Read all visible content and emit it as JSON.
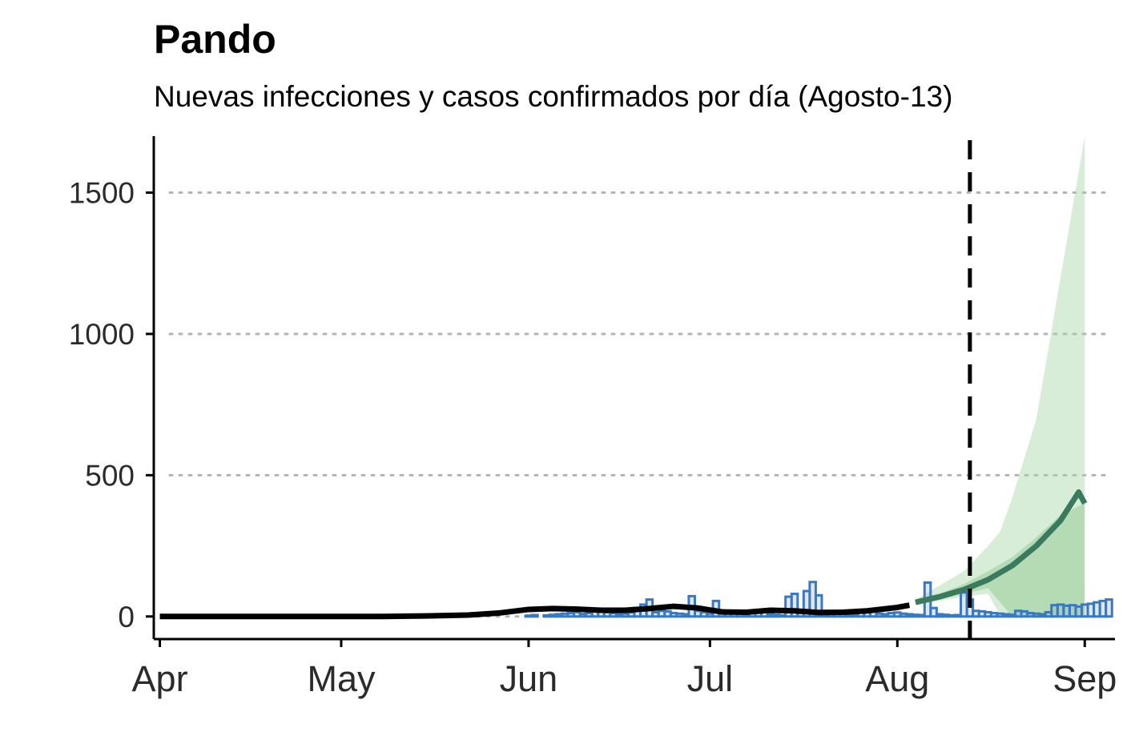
{
  "chart_data": {
    "type": "line",
    "title": "Pando",
    "subtitle": "Nuevas infecciones y casos confirmados por día (Agosto-13)",
    "xlabel": "",
    "ylabel": "",
    "x_range": [
      "2020-03-31",
      "2020-09-06"
    ],
    "ylim": [
      -80,
      1700
    ],
    "y_ticks": [
      0,
      500,
      1000,
      1500
    ],
    "x_ticks": [
      {
        "label": "Apr",
        "date": "2020-04-01"
      },
      {
        "label": "May",
        "date": "2020-05-01"
      },
      {
        "label": "Jun",
        "date": "2020-06-01"
      },
      {
        "label": "Jul",
        "date": "2020-07-01"
      },
      {
        "label": "Aug",
        "date": "2020-08-01"
      },
      {
        "label": "Sep",
        "date": "2020-09-01"
      }
    ],
    "grid": "horizontal dotted",
    "vertical_line": {
      "date": "2020-08-13",
      "style": "dashed"
    },
    "confirmed_cases": {
      "start_date": "2020-05-25",
      "values": [
        0,
        0,
        0,
        0,
        0,
        0,
        0,
        3,
        5,
        0,
        4,
        6,
        8,
        10,
        12,
        15,
        9,
        12,
        20,
        25,
        15,
        12,
        8,
        10,
        14,
        30,
        42,
        60,
        15,
        20,
        18,
        12,
        10,
        8,
        72,
        20,
        15,
        10,
        55,
        22,
        18,
        12,
        10,
        8,
        15,
        20,
        18,
        8,
        6,
        4,
        70,
        80,
        20,
        90,
        122,
        75,
        20,
        18,
        12,
        10,
        8,
        6,
        15,
        20,
        18,
        10,
        8,
        12,
        14,
        10,
        8,
        6,
        5,
        120,
        30,
        8,
        6,
        4,
        5,
        85,
        60,
        20,
        18,
        15,
        12,
        10,
        8,
        6,
        20,
        18,
        12,
        10,
        8,
        15,
        40,
        42,
        38,
        40,
        35,
        42,
        45,
        50,
        55,
        60
      ]
    },
    "series": [
      {
        "name": "",
        "color": "#000000",
        "x": [
          "2020-04-01",
          "2020-04-15",
          "2020-05-01",
          "2020-05-08",
          "2020-05-15",
          "2020-05-22",
          "2020-05-27",
          "2020-06-01",
          "2020-06-05",
          "2020-06-09",
          "2020-06-13",
          "2020-06-17",
          "2020-06-21",
          "2020-06-25",
          "2020-06-29",
          "2020-07-03",
          "2020-07-07",
          "2020-07-11",
          "2020-07-15",
          "2020-07-19",
          "2020-07-23",
          "2020-07-27",
          "2020-08-01",
          "2020-08-03"
        ],
        "values": [
          0,
          0,
          0,
          0,
          2,
          5,
          12,
          25,
          28,
          26,
          22,
          22,
          28,
          36,
          30,
          16,
          15,
          22,
          20,
          14,
          15,
          20,
          32,
          40
        ]
      },
      {
        "name": "",
        "color": "#3a7a5e",
        "x": [
          "2020-08-04",
          "2020-08-08",
          "2020-08-12",
          "2020-08-16",
          "2020-08-20",
          "2020-08-24",
          "2020-08-28",
          "2020-08-31",
          "2020-09-01"
        ],
        "values": [
          50,
          70,
          95,
          130,
          180,
          250,
          340,
          440,
          400
        ]
      }
    ],
    "bands": [
      {
        "color": "#a8d8a8",
        "x": [
          "2020-08-04",
          "2020-08-08",
          "2020-08-12",
          "2020-08-16",
          "2020-08-18",
          "2020-08-20",
          "2020-08-24",
          "2020-08-28",
          "2020-09-01"
        ],
        "lower": [
          40,
          55,
          70,
          80,
          5,
          0,
          0,
          0,
          0
        ],
        "upper": [
          60,
          110,
          160,
          250,
          300,
          420,
          700,
          1200,
          1700
        ]
      },
      {
        "color": "#8cc68c",
        "x": [
          "2020-08-04",
          "2020-08-08",
          "2020-08-12",
          "2020-08-16",
          "2020-08-20",
          "2020-08-24",
          "2020-08-28",
          "2020-09-01"
        ],
        "lower": [
          45,
          60,
          80,
          100,
          0,
          0,
          0,
          0
        ],
        "upper": [
          55,
          80,
          115,
          160,
          210,
          280,
          360,
          400
        ]
      }
    ]
  }
}
